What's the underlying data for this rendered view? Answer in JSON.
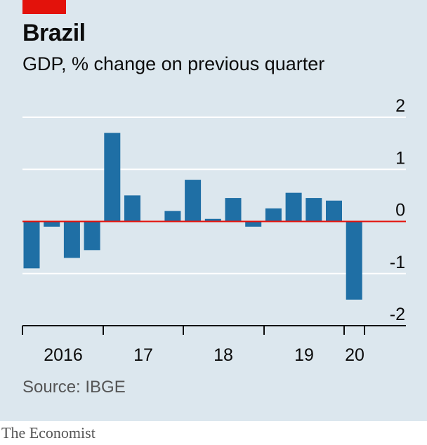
{
  "header": {
    "title": "Brazil",
    "subtitle": "GDP, % change on previous quarter"
  },
  "footer": {
    "source": "Source: IBGE",
    "brand": "The Economist"
  },
  "colors": {
    "background": "#dce7ee",
    "bar": "#1f6fa5",
    "zero_line": "#e3120b",
    "grid": "#ffffff",
    "red_tag": "#e3120b"
  },
  "chart_data": {
    "type": "bar",
    "title": "Brazil",
    "subtitle": "GDP, % change on previous quarter",
    "categories": [
      "2016 Q1",
      "2016 Q2",
      "2016 Q3",
      "2016 Q4",
      "2017 Q1",
      "2017 Q2",
      "2017 Q3",
      "2017 Q4",
      "2018 Q1",
      "2018 Q2",
      "2018 Q3",
      "2018 Q4",
      "2019 Q1",
      "2019 Q2",
      "2019 Q3",
      "2019 Q4",
      "2020 Q1"
    ],
    "values": [
      -0.9,
      -0.1,
      -0.7,
      -0.55,
      1.7,
      0.5,
      null,
      0.2,
      0.8,
      0.05,
      0.45,
      -0.1,
      0.25,
      0.55,
      0.45,
      0.4,
      -1.5
    ],
    "ylim": [
      -2,
      2
    ],
    "y_ticks": [
      2,
      1,
      0,
      -1,
      -2
    ],
    "y_tick_labels": [
      "2",
      "1",
      "0",
      "-1",
      "-2"
    ],
    "x_tick_labels": [
      "2016",
      "17",
      "18",
      "19",
      "20"
    ],
    "grid": true,
    "ylabel": "",
    "xlabel": ""
  }
}
